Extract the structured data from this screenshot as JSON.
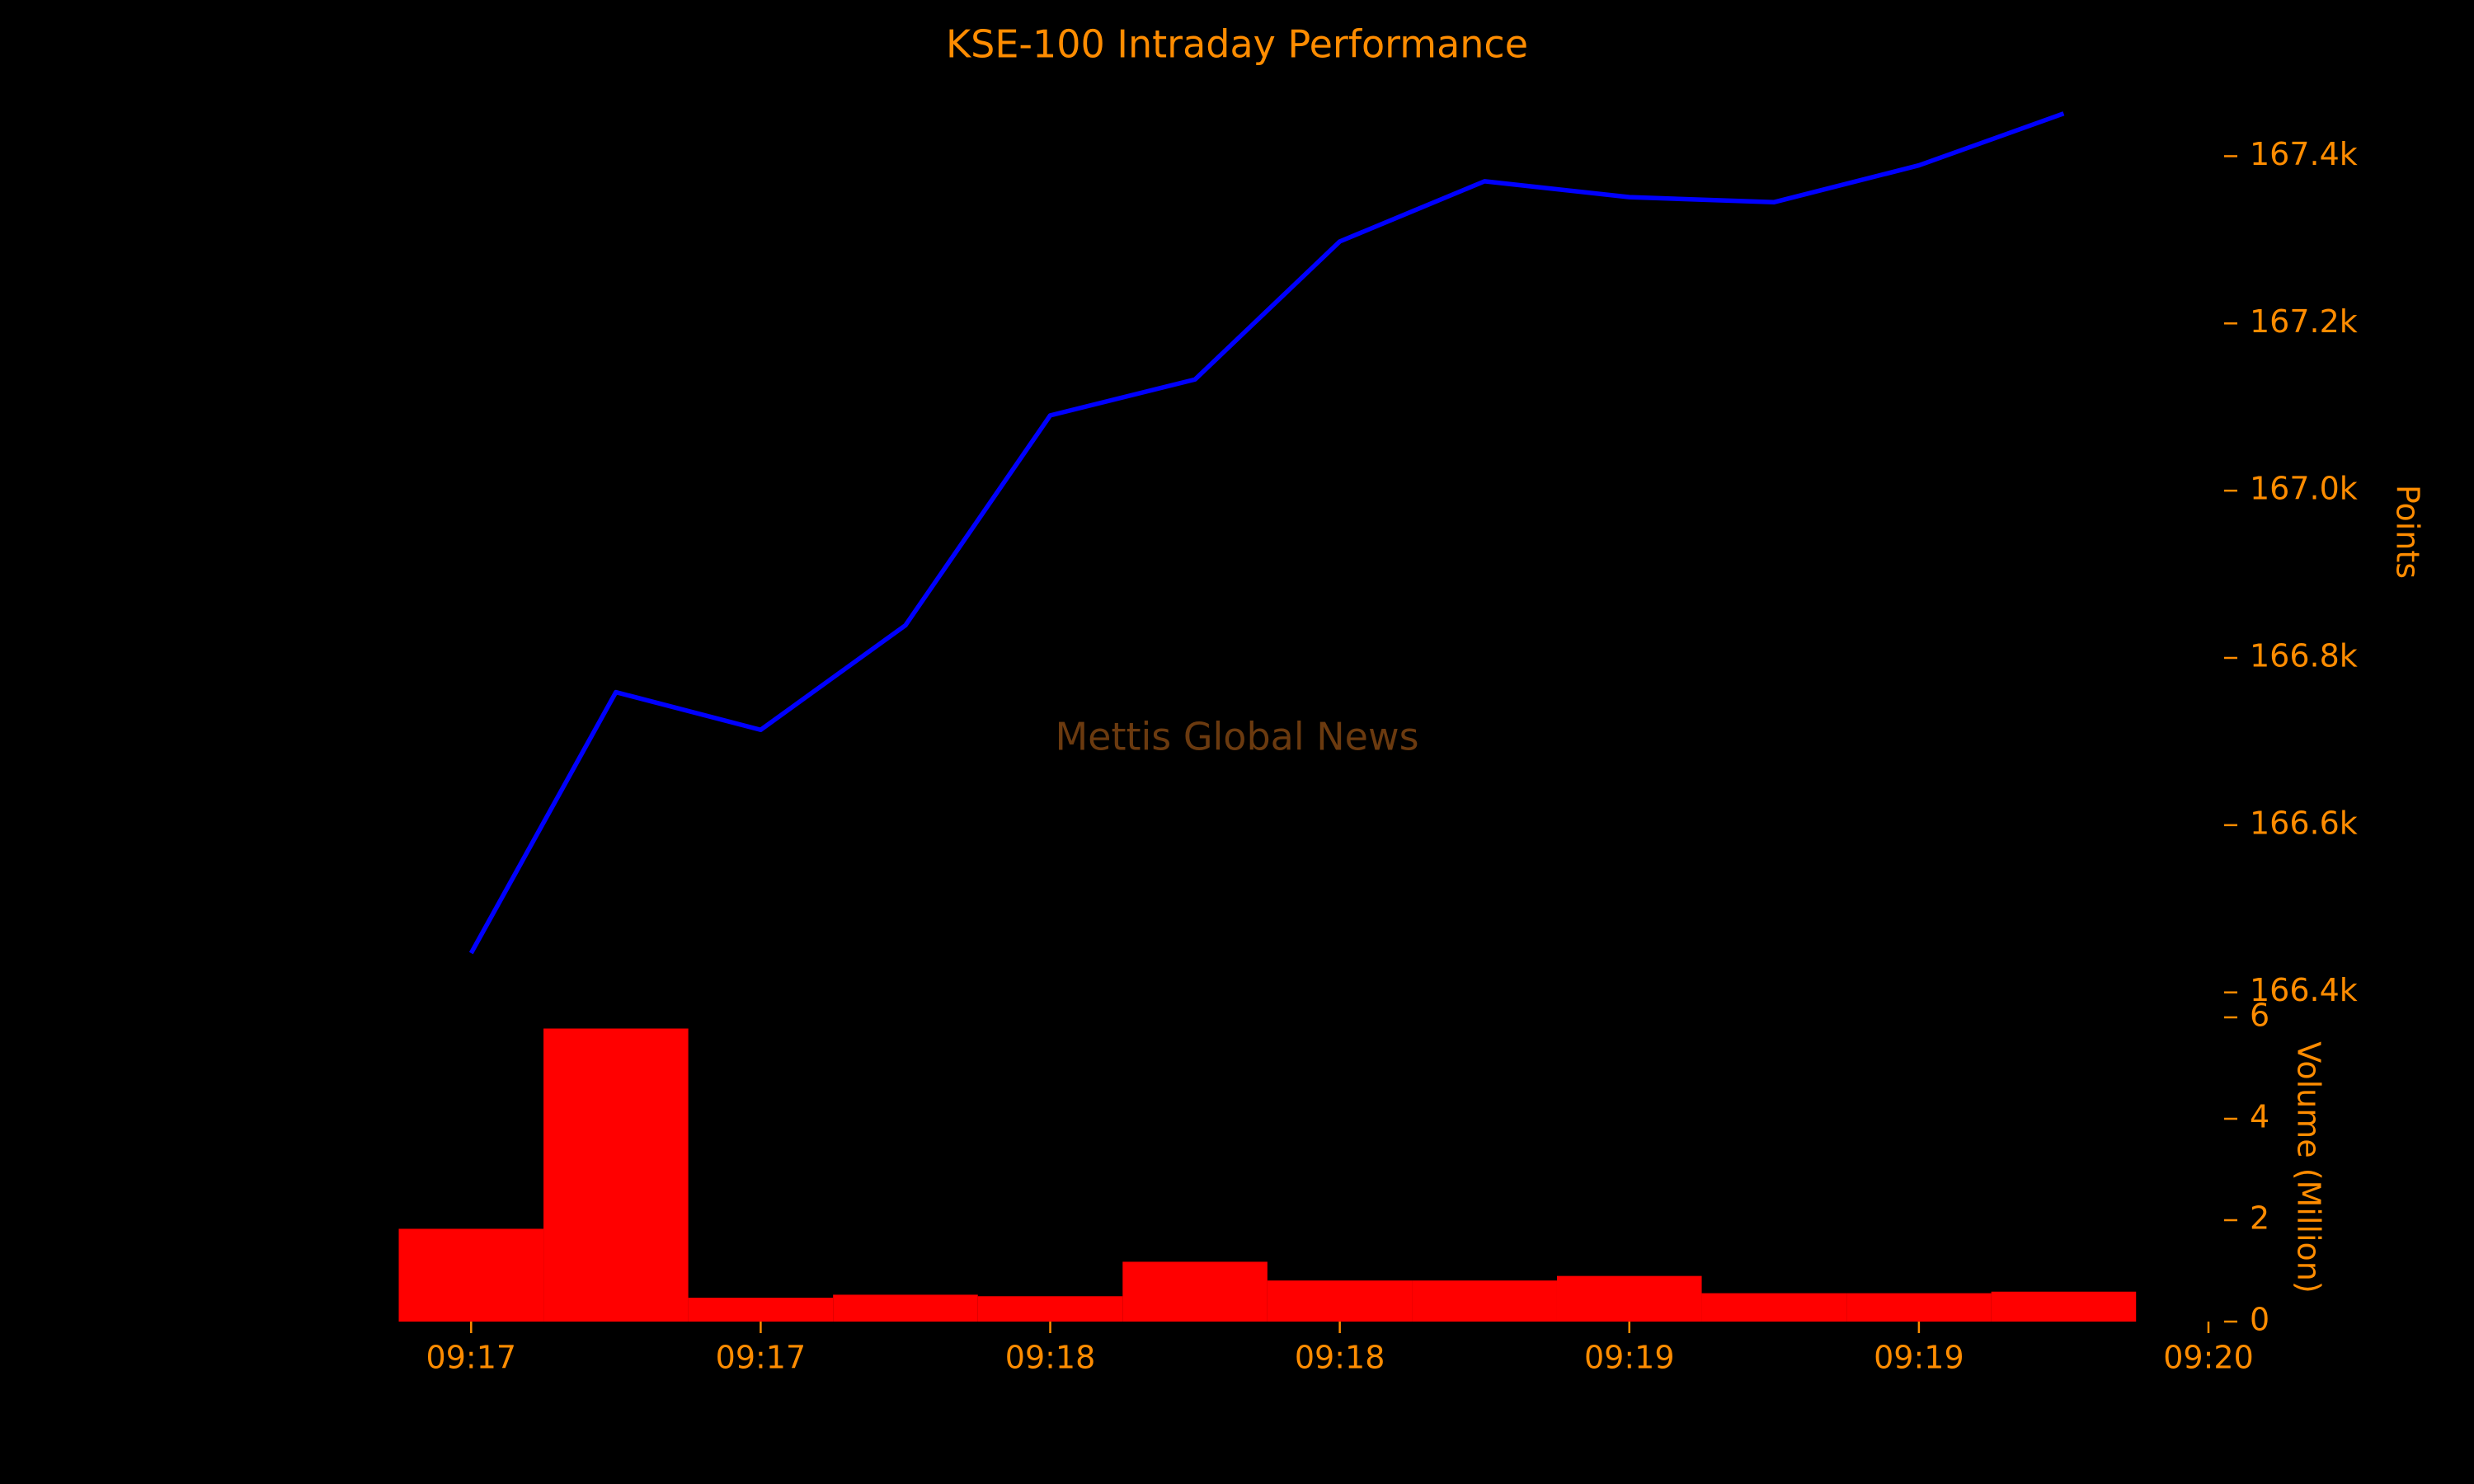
{
  "chart_data": [
    {
      "type": "line",
      "title": "KSE-100 Intraday Performance",
      "annotation": "Mettis Global News",
      "ylabel": "Points",
      "color": "#0000ff",
      "values": [
        166447,
        166759,
        166714,
        166839,
        167090,
        167133,
        167298,
        167370,
        167351,
        167345,
        167389,
        167451
      ],
      "xlim": [
        -0.52,
        12
      ],
      "ylim": [
        166380,
        167500
      ],
      "yticks": [
        {
          "value": 166400,
          "label": "166.4k"
        },
        {
          "value": 166600,
          "label": "166.6k"
        },
        {
          "value": 166800,
          "label": "166.8k"
        },
        {
          "value": 167000,
          "label": "167.0k"
        },
        {
          "value": 167200,
          "label": "167.2k"
        },
        {
          "value": 167400,
          "label": "167.4k"
        }
      ]
    },
    {
      "type": "bar",
      "ylabel": "Volume (Million)",
      "color": "#ff0000",
      "values": [
        1.83,
        5.78,
        0.47,
        0.53,
        0.5,
        1.18,
        0.81,
        0.81,
        0.9,
        0.56,
        0.56,
        0.59
      ],
      "xlim": [
        -0.52,
        12
      ],
      "xticks": [
        {
          "value": 0,
          "label": "09:17"
        },
        {
          "value": 2,
          "label": "09:17"
        },
        {
          "value": 4,
          "label": "09:18"
        },
        {
          "value": 6,
          "label": "09:18"
        },
        {
          "value": 8,
          "label": "09:19"
        },
        {
          "value": 10,
          "label": "09:19"
        },
        {
          "value": 12,
          "label": "09:20"
        }
      ],
      "ylim": [
        0,
        6
      ],
      "yticks": [
        0,
        2,
        4,
        6
      ]
    }
  ]
}
